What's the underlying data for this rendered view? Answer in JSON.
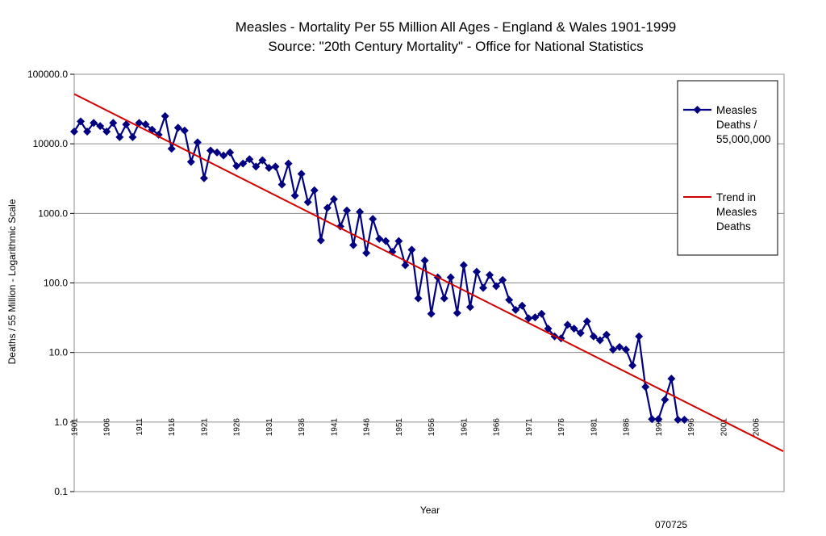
{
  "colors": {
    "series": "#000080",
    "trend": "#d40000",
    "grid": "#8c8c8c",
    "axis": "#000000"
  },
  "chart_data": {
    "type": "line",
    "title": "Measles - Mortality Per 55 Million All Ages - England & Wales 1901-1999",
    "subtitle": "Source: \"20th Century Mortality\" - Office for National Statistics",
    "xlabel": "Year",
    "ylabel": "Deaths / 55 Million - Logarithmic Scale",
    "yscale": "log",
    "ylim": [
      0.1,
      100000
    ],
    "y_ticks": [
      "0.1",
      "1.0",
      "10.0",
      "100.0",
      "1000.0",
      "10000.0",
      "100000.0"
    ],
    "xlim": [
      1901,
      2006
    ],
    "x_ticks": [
      "1901",
      "1906",
      "1911",
      "1916",
      "1921",
      "1926",
      "1931",
      "1936",
      "1941",
      "1946",
      "1951",
      "1956",
      "1961",
      "1966",
      "1971",
      "1976",
      "1981",
      "1986",
      "1991",
      "1996",
      "2001",
      "2006"
    ],
    "x_tick_orientation": "vertical",
    "grid": "horizontal",
    "legend_position": "right",
    "series": [
      {
        "name": "Measles Deaths / 55,000,000",
        "marker": "diamond",
        "x": [
          1901,
          1902,
          1903,
          1904,
          1905,
          1906,
          1907,
          1908,
          1909,
          1910,
          1911,
          1912,
          1913,
          1914,
          1915,
          1916,
          1917,
          1918,
          1919,
          1920,
          1921,
          1922,
          1923,
          1924,
          1925,
          1926,
          1927,
          1928,
          1929,
          1930,
          1931,
          1932,
          1933,
          1934,
          1935,
          1936,
          1937,
          1938,
          1939,
          1940,
          1941,
          1942,
          1943,
          1944,
          1945,
          1946,
          1947,
          1948,
          1949,
          1950,
          1951,
          1952,
          1953,
          1954,
          1955,
          1956,
          1957,
          1958,
          1959,
          1960,
          1961,
          1962,
          1963,
          1964,
          1965,
          1966,
          1967,
          1968,
          1969,
          1970,
          1971,
          1972,
          1973,
          1974,
          1975,
          1976,
          1977,
          1978,
          1979,
          1980,
          1981,
          1982,
          1983,
          1984,
          1985,
          1986,
          1987,
          1988,
          1989,
          1990,
          1991,
          1992,
          1993,
          1994,
          1995
        ],
        "y": [
          15000,
          21000,
          15000,
          20000,
          18000,
          15000,
          20000,
          12500,
          19000,
          12500,
          20000,
          19000,
          16000,
          13500,
          25000,
          8500,
          17000,
          15500,
          5500,
          10500,
          3200,
          8000,
          7500,
          6800,
          7500,
          4800,
          5200,
          6000,
          4700,
          5800,
          4500,
          4700,
          2600,
          5200,
          1800,
          3700,
          1450,
          2150,
          410,
          1200,
          1600,
          650,
          1100,
          350,
          1050,
          270,
          830,
          430,
          400,
          280,
          400,
          180,
          300,
          60,
          210,
          36,
          120,
          60,
          120,
          37,
          180,
          45,
          145,
          85,
          130,
          90,
          110,
          57,
          41,
          47,
          31,
          32,
          36,
          22,
          17,
          16,
          25,
          22,
          19,
          28,
          17,
          15,
          18,
          11,
          12,
          11,
          6.5,
          17,
          3.2,
          1.1,
          1.1,
          2.1,
          4.2,
          1.08,
          1.08
        ]
      },
      {
        "name": "Trend in Measles Deaths",
        "x": [
          1901,
          2006
        ],
        "y": [
          52000,
          0.6
        ]
      }
    ]
  },
  "footer": {
    "code": "070725"
  }
}
